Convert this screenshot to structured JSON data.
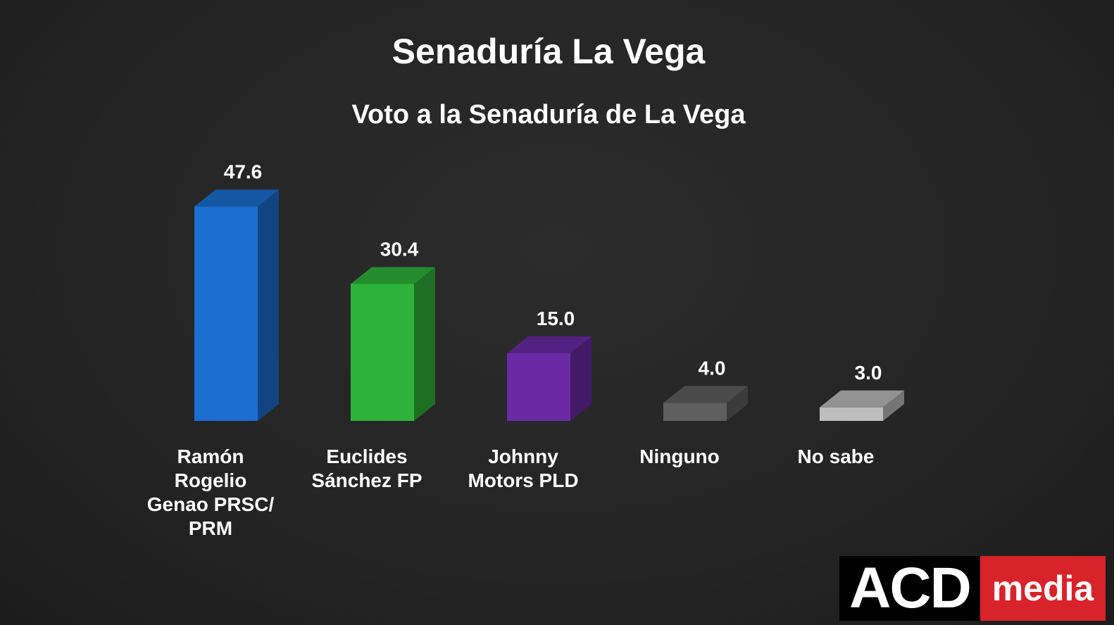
{
  "header": {
    "title": "Senaduría La Vega",
    "subtitle": "Voto a la Senaduría de La Vega"
  },
  "chart_data": {
    "type": "bar",
    "title": "Senaduría La Vega",
    "subtitle": "Voto a la Senaduría de La Vega",
    "categories": [
      "Ramón\nRogelio\nGenao PRSC/\nPRM",
      "Euclides\nSánchez FP",
      "Johnny\nMotors PLD",
      "Ninguno",
      "No sabe"
    ],
    "values": [
      47.6,
      30.4,
      15.0,
      4.0,
      3.0
    ],
    "value_labels": [
      "47.6",
      "30.4",
      "15.0",
      "4.0",
      "3.0"
    ],
    "colors": [
      "#1a6fd1",
      "#2eb33a",
      "#6a2aa6",
      "#5f5f5f",
      "#bdbdbd"
    ],
    "bar_style": "3d",
    "grid": false,
    "legend": "none"
  },
  "logo": {
    "part1": "ACD",
    "part2": "media"
  }
}
